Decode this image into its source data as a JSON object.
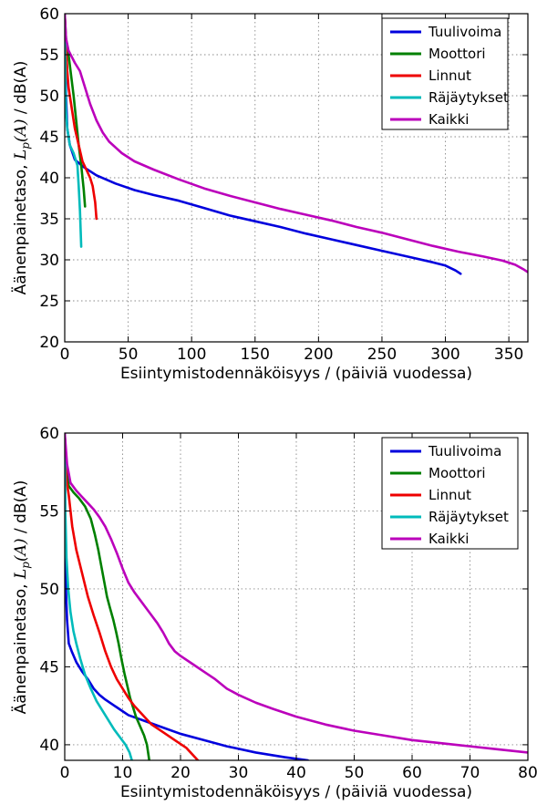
{
  "chart_data": [
    {
      "type": "line",
      "xlabel": "Esiintymistodennäköisyys / (päiviä vuodessa)",
      "ylabel_prefix": "Äänenpainetaso, ",
      "ylabel_symbol": "L",
      "ylabel_subscript": "p",
      "ylabel_arg": "(A)",
      "ylabel_suffix": " / dB(A)",
      "xlim": [
        0,
        365
      ],
      "ylim": [
        20,
        60
      ],
      "x_ticks": [
        0,
        50,
        100,
        150,
        200,
        250,
        300,
        350
      ],
      "y_ticks": [
        20,
        25,
        30,
        35,
        40,
        45,
        50,
        55,
        60
      ],
      "grid": true,
      "legend_position": "top-right",
      "series": [
        {
          "name": "Tuulivoima",
          "color": "#0000dd",
          "points": [
            [
              0,
              60
            ],
            [
              0.4,
              55
            ],
            [
              1,
              50
            ],
            [
              2,
              46
            ],
            [
              4,
              44
            ],
            [
              8,
              42.2
            ],
            [
              15,
              41.3
            ],
            [
              25,
              40.3
            ],
            [
              40,
              39.3
            ],
            [
              55,
              38.5
            ],
            [
              70,
              37.9
            ],
            [
              90,
              37.2
            ],
            [
              110,
              36.3
            ],
            [
              130,
              35.4
            ],
            [
              150,
              34.7
            ],
            [
              170,
              34
            ],
            [
              190,
              33.2
            ],
            [
              210,
              32.5
            ],
            [
              230,
              31.8
            ],
            [
              250,
              31.1
            ],
            [
              270,
              30.4
            ],
            [
              290,
              29.7
            ],
            [
              300,
              29.3
            ],
            [
              308,
              28.7
            ],
            [
              312,
              28.3
            ]
          ]
        },
        {
          "name": "Moottori",
          "color": "#008000",
          "points": [
            [
              0,
              60
            ],
            [
              1,
              57
            ],
            [
              3,
              55
            ],
            [
              5,
              52.5
            ],
            [
              7,
              50
            ],
            [
              9,
              47
            ],
            [
              11,
              44
            ],
            [
              13,
              41.5
            ],
            [
              15,
              38.5
            ],
            [
              16,
              36.5
            ]
          ]
        },
        {
          "name": "Linnut",
          "color": "#ee0000",
          "points": [
            [
              0,
              60
            ],
            [
              1,
              56
            ],
            [
              2,
              53
            ],
            [
              3,
              51
            ],
            [
              5,
              49
            ],
            [
              8,
              46
            ],
            [
              11,
              44
            ],
            [
              14,
              42
            ],
            [
              17,
              41
            ],
            [
              20,
              40
            ],
            [
              22,
              39
            ],
            [
              24,
              37
            ],
            [
              25,
              35
            ]
          ]
        },
        {
          "name": "Räjäytykset",
          "color": "#00bbbb",
          "points": [
            [
              0,
              60
            ],
            [
              0.5,
              52
            ],
            [
              1,
              48
            ],
            [
              2,
              46
            ],
            [
              4,
              44
            ],
            [
              7,
              43
            ],
            [
              10,
              41.5
            ],
            [
              11,
              39
            ],
            [
              12,
              36
            ],
            [
              13,
              31.6
            ]
          ]
        },
        {
          "name": "Kaikki",
          "color": "#bb00bb",
          "points": [
            [
              0,
              60
            ],
            [
              1,
              57
            ],
            [
              3,
              55.5
            ],
            [
              8,
              54
            ],
            [
              12,
              53
            ],
            [
              16,
              51
            ],
            [
              20,
              49
            ],
            [
              25,
              47
            ],
            [
              30,
              45.5
            ],
            [
              35,
              44.4
            ],
            [
              45,
              43
            ],
            [
              55,
              42
            ],
            [
              70,
              41
            ],
            [
              90,
              39.8
            ],
            [
              110,
              38.7
            ],
            [
              130,
              37.8
            ],
            [
              150,
              37
            ],
            [
              170,
              36.2
            ],
            [
              190,
              35.5
            ],
            [
              210,
              34.8
            ],
            [
              230,
              34
            ],
            [
              250,
              33.3
            ],
            [
              270,
              32.5
            ],
            [
              290,
              31.7
            ],
            [
              310,
              31
            ],
            [
              330,
              30.4
            ],
            [
              345,
              29.9
            ],
            [
              355,
              29.4
            ],
            [
              362,
              28.8
            ],
            [
              365,
              28.5
            ]
          ]
        }
      ]
    },
    {
      "type": "line",
      "xlabel": "Esiintymistodennäköisyys / (päiviä vuodessa)",
      "ylabel_prefix": "Äänenpainetaso, ",
      "ylabel_symbol": "L",
      "ylabel_subscript": "p",
      "ylabel_arg": "(A)",
      "ylabel_suffix": " / dB(A)",
      "xlim": [
        0,
        80
      ],
      "ylim": [
        39,
        60
      ],
      "x_ticks": [
        0,
        10,
        20,
        30,
        40,
        50,
        60,
        70,
        80
      ],
      "y_ticks": [
        40,
        45,
        50,
        55,
        60
      ],
      "grid": true,
      "legend_position": "top-right",
      "series": [
        {
          "name": "Tuulivoima",
          "color": "#0000dd",
          "points": [
            [
              0,
              60
            ],
            [
              0.1,
              53
            ],
            [
              0.2,
              50
            ],
            [
              0.4,
              48
            ],
            [
              0.7,
              46.5
            ],
            [
              1.2,
              46
            ],
            [
              2,
              45.3
            ],
            [
              3,
              44.7
            ],
            [
              4,
              44.2
            ],
            [
              5,
              43.6
            ],
            [
              6,
              43.2
            ],
            [
              7,
              42.9
            ],
            [
              9,
              42.4
            ],
            [
              11,
              41.9
            ],
            [
              14,
              41.5
            ],
            [
              17,
              41.1
            ],
            [
              20,
              40.7
            ],
            [
              24,
              40.3
            ],
            [
              28,
              39.9
            ],
            [
              33,
              39.5
            ],
            [
              38,
              39.2
            ],
            [
              42,
              39
            ]
          ]
        },
        {
          "name": "Moottori",
          "color": "#008000",
          "points": [
            [
              0,
              60
            ],
            [
              0.3,
              57.5
            ],
            [
              0.7,
              56.6
            ],
            [
              1.5,
              56.2
            ],
            [
              2.5,
              55.8
            ],
            [
              3.5,
              55.3
            ],
            [
              4.5,
              54.5
            ],
            [
              5.2,
              53.5
            ],
            [
              5.8,
              52.5
            ],
            [
              6.3,
              51.5
            ],
            [
              6.8,
              50.5
            ],
            [
              7.3,
              49.5
            ],
            [
              7.8,
              48.8
            ],
            [
              8.4,
              48
            ],
            [
              8.9,
              47.2
            ],
            [
              9.3,
              46.5
            ],
            [
              9.8,
              45.5
            ],
            [
              10.3,
              44.6
            ],
            [
              10.8,
              43.8
            ],
            [
              11.3,
              43
            ],
            [
              11.8,
              42.4
            ],
            [
              12.3,
              41.8
            ],
            [
              13,
              41.2
            ],
            [
              13.7,
              40.6
            ],
            [
              14.2,
              40
            ],
            [
              14.6,
              39
            ]
          ]
        },
        {
          "name": "Linnut",
          "color": "#ee0000",
          "points": [
            [
              0,
              60
            ],
            [
              0.3,
              57
            ],
            [
              0.7,
              56
            ],
            [
              1.3,
              54
            ],
            [
              2,
              52.5
            ],
            [
              3,
              51
            ],
            [
              4,
              49.5
            ],
            [
              5,
              48.3
            ],
            [
              6,
              47.2
            ],
            [
              7,
              46
            ],
            [
              8,
              45
            ],
            [
              9,
              44.2
            ],
            [
              10,
              43.6
            ],
            [
              11,
              43
            ],
            [
              12,
              42.5
            ],
            [
              13,
              42.1
            ],
            [
              14,
              41.7
            ],
            [
              15,
              41.3
            ],
            [
              17,
              40.8
            ],
            [
              19,
              40.3
            ],
            [
              21,
              39.8
            ],
            [
              22.5,
              39.2
            ],
            [
              23,
              39
            ]
          ]
        },
        {
          "name": "Räjäytykset",
          "color": "#00bbbb",
          "points": [
            [
              0,
              60
            ],
            [
              0.1,
              55
            ],
            [
              0.3,
              52
            ],
            [
              0.6,
              50
            ],
            [
              1,
              48.5
            ],
            [
              1.5,
              47.3
            ],
            [
              2,
              46.5
            ],
            [
              2.7,
              45.5
            ],
            [
              3.5,
              44.5
            ],
            [
              4.5,
              43.6
            ],
            [
              5.5,
              42.8
            ],
            [
              6.5,
              42.2
            ],
            [
              7.5,
              41.6
            ],
            [
              8.5,
              41
            ],
            [
              9.5,
              40.5
            ],
            [
              10.5,
              40
            ],
            [
              11.2,
              39.5
            ],
            [
              11.6,
              39
            ]
          ]
        },
        {
          "name": "Kaikki",
          "color": "#bb00bb",
          "points": [
            [
              0,
              60
            ],
            [
              0.4,
              58
            ],
            [
              1,
              56.8
            ],
            [
              2,
              56.3
            ],
            [
              3,
              55.9
            ],
            [
              4,
              55.5
            ],
            [
              5,
              55.1
            ],
            [
              6,
              54.6
            ],
            [
              7,
              54
            ],
            [
              8,
              53.2
            ],
            [
              9,
              52.3
            ],
            [
              10,
              51.3
            ],
            [
              11,
              50.4
            ],
            [
              12,
              49.8
            ],
            [
              13,
              49.3
            ],
            [
              14,
              48.8
            ],
            [
              15,
              48.3
            ],
            [
              16,
              47.8
            ],
            [
              17,
              47.2
            ],
            [
              18,
              46.5
            ],
            [
              19,
              46
            ],
            [
              20,
              45.7
            ],
            [
              22,
              45.2
            ],
            [
              24,
              44.7
            ],
            [
              26,
              44.2
            ],
            [
              28,
              43.6
            ],
            [
              30,
              43.2
            ],
            [
              33,
              42.7
            ],
            [
              36,
              42.3
            ],
            [
              40,
              41.8
            ],
            [
              45,
              41.3
            ],
            [
              50,
              40.9
            ],
            [
              55,
              40.6
            ],
            [
              60,
              40.3
            ],
            [
              65,
              40.1
            ],
            [
              70,
              39.9
            ],
            [
              75,
              39.7
            ],
            [
              80,
              39.5
            ]
          ]
        }
      ]
    }
  ]
}
